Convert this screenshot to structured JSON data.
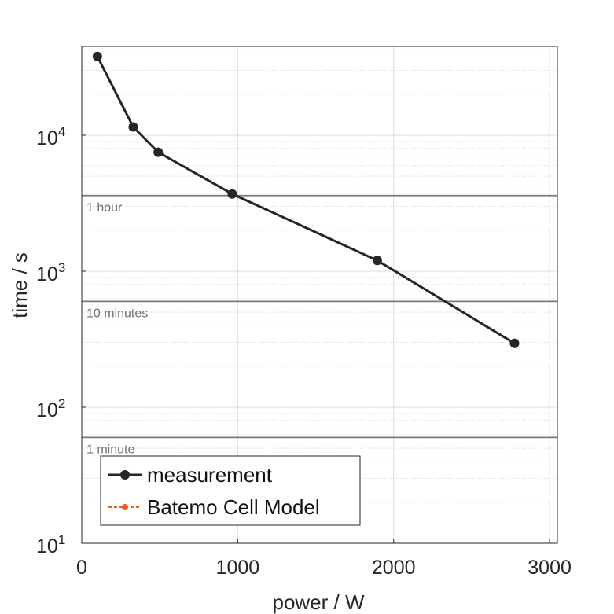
{
  "chart_data": {
    "type": "line",
    "xlabel": "power / W",
    "ylabel": "time / s",
    "xlim": [
      0,
      3050
    ],
    "ylim": [
      10,
      45000
    ],
    "yscale": "log",
    "grid": true,
    "x_ticks": [
      {
        "value": 0,
        "label": "0"
      },
      {
        "value": 1000,
        "label": "1000"
      },
      {
        "value": 2000,
        "label": "2000"
      },
      {
        "value": 3000,
        "label": "3000"
      }
    ],
    "y_ticks": [
      {
        "value": 10,
        "base": "10",
        "exp": "1"
      },
      {
        "value": 100,
        "base": "10",
        "exp": "2"
      },
      {
        "value": 1000,
        "base": "10",
        "exp": "3"
      },
      {
        "value": 10000,
        "base": "10",
        "exp": "4"
      }
    ],
    "series": [
      {
        "name": "measurement",
        "color": "#262626",
        "x": [
          100,
          330,
          490,
          965,
          1895,
          2775
        ],
        "y": [
          38000,
          11500,
          7500,
          3700,
          1200,
          295
        ]
      },
      {
        "name": "Batemo Cell Model",
        "color": "#e8601c",
        "x": [],
        "y": []
      }
    ],
    "reference_lines": [
      {
        "label": "1 hour",
        "value": 3600
      },
      {
        "label": "10 minutes",
        "value": 600
      },
      {
        "label": "1 minute",
        "value": 60
      }
    ],
    "legend": {
      "position": "bottom-left"
    }
  }
}
